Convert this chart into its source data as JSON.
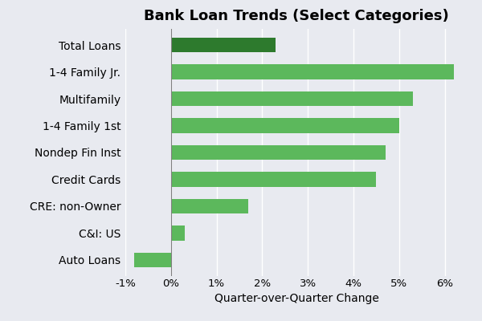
{
  "title": "Bank Loan Trends (Select Categories)",
  "xlabel": "Quarter-over-Quarter Change",
  "categories": [
    "Auto Loans",
    "C&I: US",
    "CRE: non-Owner",
    "Credit Cards",
    "Nondep Fin Inst",
    "1-4 Family 1st",
    "Multifamily",
    "1-4 Family Jr.",
    "Total Loans"
  ],
  "values": [
    -0.008,
    0.003,
    0.017,
    0.045,
    0.047,
    0.05,
    0.053,
    0.062,
    0.023
  ],
  "bar_colors": [
    "#5cb85c",
    "#5cb85c",
    "#5cb85c",
    "#5cb85c",
    "#5cb85c",
    "#5cb85c",
    "#5cb85c",
    "#5cb85c",
    "#2d7a2d"
  ],
  "xlim": [
    -0.01,
    0.065
  ],
  "xtick_vals": [
    -0.01,
    0.0,
    0.01,
    0.02,
    0.03,
    0.04,
    0.05,
    0.06
  ],
  "xtick_labels": [
    "-1%",
    "0%",
    "1%",
    "2%",
    "3%",
    "4%",
    "5%",
    "6%"
  ],
  "background_color": "#e8eaf0",
  "title_fontsize": 13,
  "label_fontsize": 10,
  "tick_fontsize": 9.5,
  "bar_height": 0.55
}
